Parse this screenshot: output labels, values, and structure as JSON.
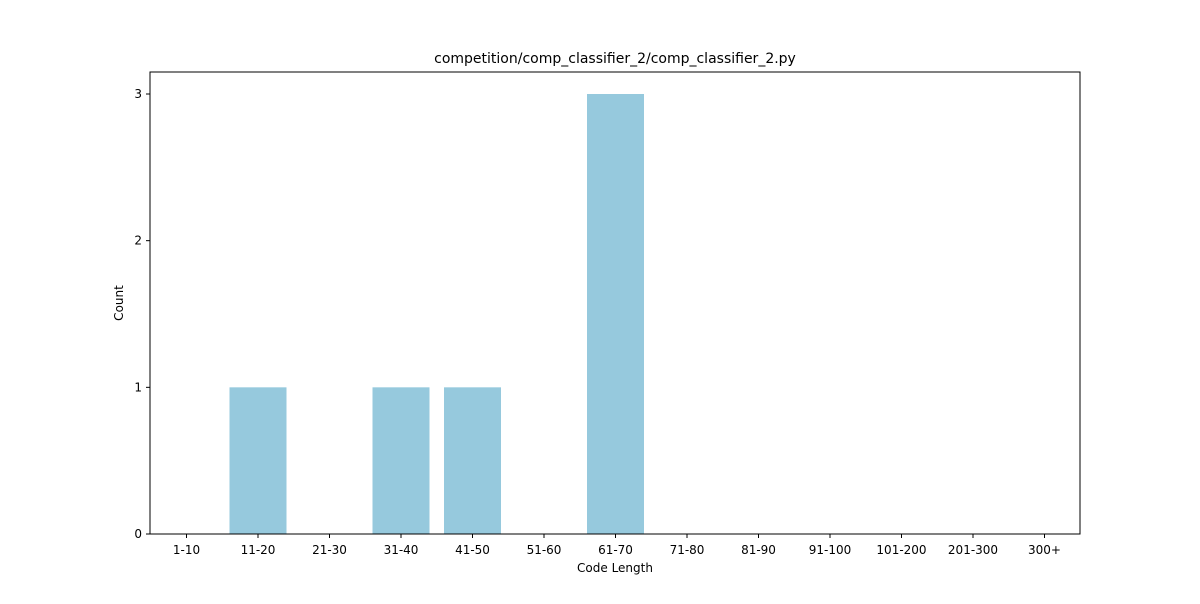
{
  "chart_data": {
    "type": "bar",
    "title": "competition/comp_classifier_2/comp_classifier_2.py",
    "xlabel": "Code Length",
    "ylabel": "Count",
    "categories": [
      "1-10",
      "11-20",
      "21-30",
      "31-40",
      "41-50",
      "51-60",
      "61-70",
      "71-80",
      "81-90",
      "91-100",
      "101-200",
      "201-300",
      "300+"
    ],
    "values": [
      0,
      1,
      0,
      1,
      1,
      0,
      3,
      0,
      0,
      0,
      0,
      0,
      0
    ],
    "ylim": [
      0,
      3.15
    ],
    "yticks": [
      0,
      1,
      2,
      3
    ],
    "grid": false,
    "legend": "none",
    "colors": {
      "bar": "#96c9dd",
      "axis": "#000000"
    }
  }
}
